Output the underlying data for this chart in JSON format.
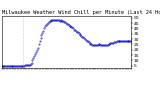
{
  "title": "Milwaukee Weather Wind Chill per Minute (Last 24 Hours)",
  "title_fontsize": 3.8,
  "line_color": "#0000cc",
  "bg_color": "#ffffff",
  "border_color": "#000000",
  "ylim": [
    3,
    52
  ],
  "yticks": [
    5,
    10,
    15,
    20,
    25,
    30,
    35,
    40,
    45,
    50
  ],
  "ytick_fontsize": 3.2,
  "xtick_fontsize": 2.8,
  "x_values": [
    0,
    1,
    2,
    3,
    4,
    5,
    6,
    7,
    8,
    9,
    10,
    11,
    12,
    13,
    14,
    15,
    16,
    17,
    18,
    19,
    20,
    21,
    22,
    23,
    24,
    25,
    26,
    27,
    28,
    29,
    30,
    31,
    32,
    33,
    34,
    35,
    36,
    37,
    38,
    39,
    40,
    41,
    42,
    43,
    44,
    45,
    46,
    47,
    48,
    49,
    50,
    51,
    52,
    53,
    54,
    55,
    56,
    57,
    58,
    59,
    60,
    61,
    62,
    63,
    64,
    65,
    66,
    67,
    68,
    69,
    70,
    71,
    72,
    73,
    74,
    75,
    76,
    77,
    78,
    79,
    80,
    81,
    82,
    83,
    84,
    85,
    86,
    87,
    88,
    89,
    90,
    91,
    92,
    93,
    94,
    95,
    96,
    97,
    98,
    99,
    100,
    101,
    102,
    103,
    104,
    105,
    106,
    107,
    108,
    109,
    110,
    111,
    112,
    113,
    114,
    115,
    116,
    117,
    118,
    119,
    120,
    121,
    122,
    123,
    124,
    125,
    126,
    127,
    128,
    129,
    130,
    131,
    132,
    133,
    134,
    135,
    136,
    137,
    138,
    139,
    140,
    141,
    142,
    143
  ],
  "y_values": [
    5,
    5,
    5,
    5,
    5,
    5,
    5,
    5,
    5,
    5,
    5,
    5,
    5,
    5,
    5,
    5,
    5,
    5,
    5,
    5,
    5,
    5,
    5,
    5,
    5,
    5,
    6,
    6,
    6,
    6,
    6,
    6,
    7,
    8,
    10,
    12,
    14,
    16,
    18,
    20,
    22,
    25,
    28,
    31,
    34,
    36,
    38,
    40,
    42,
    43,
    44,
    45,
    46,
    47,
    47,
    48,
    48,
    48,
    48,
    48,
    48,
    48,
    48,
    48,
    47,
    48,
    47,
    47,
    47,
    46,
    46,
    45,
    44,
    44,
    43,
    42,
    42,
    41,
    41,
    40,
    39,
    39,
    38,
    37,
    37,
    36,
    35,
    34,
    33,
    32,
    32,
    31,
    30,
    29,
    28,
    28,
    27,
    26,
    25,
    25,
    24,
    24,
    24,
    24,
    24,
    24,
    24,
    25,
    25,
    24,
    24,
    24,
    24,
    24,
    24,
    24,
    24,
    24,
    25,
    25,
    26,
    26,
    26,
    26,
    27,
    27,
    27,
    28,
    28,
    28,
    28,
    28,
    28,
    28,
    28,
    28,
    28,
    28,
    28,
    28,
    28,
    28,
    28,
    28
  ],
  "marker_size": 0.7,
  "vline_x": 24,
  "vline_color": "#aaaaaa",
  "num_xticks": 48
}
